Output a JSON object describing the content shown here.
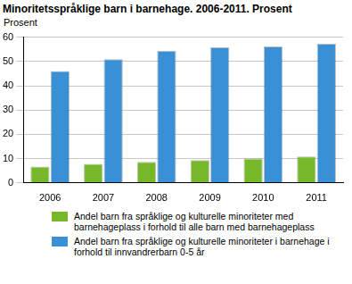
{
  "chart_data": {
    "type": "bar",
    "title": "Minoritetsspråklige barn i barnehage. 2006-2011. Prosent",
    "ylabel": "Prosent",
    "categories": [
      "2006",
      "2007",
      "2008",
      "2009",
      "2010",
      "2011"
    ],
    "series": [
      {
        "name": "Andel barn fra språklige og kulturelle minoriteter med barnehageplass i forhold til alle barn med barnehageplass",
        "color": "#77b82a",
        "values": [
          6.7,
          7.8,
          8.7,
          9.4,
          10.0,
          10.9
        ]
      },
      {
        "name": "Andel barn fra språklige og kulturelle minoriteter i barnehage i forhold til innvandrerbarn 0-5 år",
        "color": "#3a90d4",
        "values": [
          46.1,
          50.9,
          54.3,
          55.9,
          56.2,
          57.3
        ]
      }
    ],
    "ylim": [
      0,
      60
    ],
    "yticks": [
      0,
      10,
      20,
      30,
      40,
      50,
      60
    ],
    "grid": true,
    "legend": "bottom"
  }
}
